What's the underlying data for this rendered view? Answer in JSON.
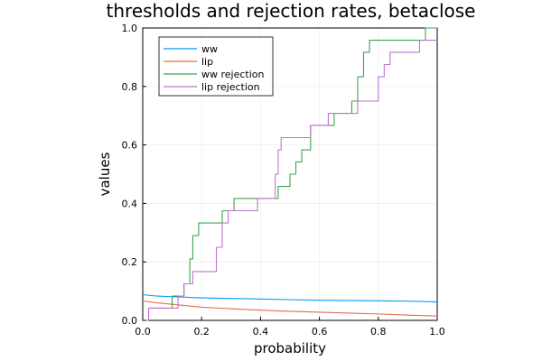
{
  "chart_data": {
    "type": "line",
    "title": "thresholds and rejection rates, betaclose",
    "xlabel": "probability",
    "ylabel": "values",
    "xlim": [
      0,
      1
    ],
    "ylim": [
      0,
      1
    ],
    "xticks": [
      "0.0",
      "0.2",
      "0.4",
      "0.6",
      "0.8",
      "1.0"
    ],
    "yticks": [
      "0.0",
      "0.2",
      "0.4",
      "0.6",
      "0.8",
      "1.0"
    ],
    "grid": true,
    "legend_position": "top-left",
    "series": [
      {
        "name": "ww",
        "color": "#009af9",
        "step": false,
        "x": [
          0.0,
          0.05,
          0.1,
          0.2,
          0.3,
          0.4,
          0.5,
          0.6,
          0.7,
          0.8,
          0.9,
          1.0
        ],
        "y": [
          0.088,
          0.083,
          0.081,
          0.077,
          0.075,
          0.073,
          0.071,
          0.069,
          0.068,
          0.067,
          0.066,
          0.063
        ]
      },
      {
        "name": "lip",
        "color": "#e26f46",
        "step": false,
        "x": [
          0.0,
          0.05,
          0.1,
          0.15,
          0.2,
          0.3,
          0.4,
          0.5,
          0.6,
          0.7,
          0.8,
          0.9,
          1.0
        ],
        "y": [
          0.066,
          0.06,
          0.055,
          0.05,
          0.045,
          0.04,
          0.035,
          0.031,
          0.028,
          0.025,
          0.022,
          0.018,
          0.015
        ]
      },
      {
        "name": "ww rejection",
        "color": "#3da44d",
        "step": true,
        "x": [
          0.0,
          0.02,
          0.1,
          0.14,
          0.16,
          0.17,
          0.19,
          0.27,
          0.29,
          0.31,
          0.41,
          0.46,
          0.5,
          0.52,
          0.54,
          0.57,
          0.63,
          0.65,
          0.69,
          0.71,
          0.73,
          0.75,
          0.77,
          0.79,
          0.96,
          1.0
        ],
        "y": [
          0.0,
          0.042,
          0.083,
          0.125,
          0.21,
          0.29,
          0.333,
          0.375,
          0.375,
          0.417,
          0.417,
          0.458,
          0.5,
          0.542,
          0.583,
          0.667,
          0.667,
          0.708,
          0.708,
          0.75,
          0.833,
          0.917,
          0.958,
          0.958,
          1.0,
          1.0
        ]
      },
      {
        "name": "lip rejection",
        "color": "#c271d2",
        "step": true,
        "x": [
          0.0,
          0.02,
          0.12,
          0.14,
          0.15,
          0.17,
          0.25,
          0.27,
          0.29,
          0.31,
          0.37,
          0.39,
          0.45,
          0.46,
          0.47,
          0.55,
          0.57,
          0.6,
          0.63,
          0.68,
          0.73,
          0.77,
          0.8,
          0.82,
          0.84,
          0.86,
          0.9,
          0.94,
          1.0
        ],
        "y": [
          0.0,
          0.042,
          0.083,
          0.125,
          0.125,
          0.167,
          0.25,
          0.333,
          0.375,
          0.375,
          0.375,
          0.417,
          0.5,
          0.583,
          0.625,
          0.625,
          0.667,
          0.667,
          0.708,
          0.708,
          0.75,
          0.75,
          0.833,
          0.875,
          0.917,
          0.917,
          0.917,
          0.958,
          0.958
        ]
      }
    ]
  }
}
